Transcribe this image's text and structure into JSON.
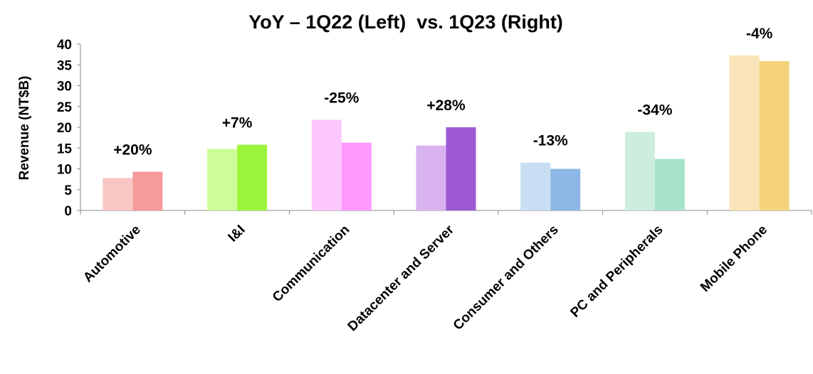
{
  "chart_data": {
    "type": "bar",
    "title": "YoY – 1Q22 (Left)  vs. 1Q23 (Right)",
    "y_label": "Revenue (NT$B)",
    "categories": [
      "Automotive",
      "I&I",
      "Communication",
      "Datacenter and Server",
      "Consumer and Others",
      "PC and Peripherals",
      "Mobile Phone"
    ],
    "series": [
      {
        "values": [
          7.8,
          14.8,
          21.8,
          15.6,
          11.5,
          18.9,
          37.3
        ],
        "colors": [
          "#f9c6c6",
          "#ccfd99",
          "#fdc7fd",
          "#d9b3f0",
          "#c9def2",
          "#cdeedd",
          "#f9e4b8"
        ]
      },
      {
        "values": [
          9.3,
          15.8,
          16.3,
          20.0,
          10.0,
          12.4,
          35.9
        ],
        "colors": [
          "#f79a9a",
          "#9cf53a",
          "#fd99fd",
          "#9d5ad2",
          "#8db7e4",
          "#a8e4cb",
          "#f5d27c"
        ]
      }
    ],
    "annotations": [
      "+20%",
      "+7%",
      "-25%",
      "+28%",
      "-13%",
      "-34%",
      "-4%"
    ],
    "ylim": [
      0,
      40
    ],
    "yticks": [
      0,
      5,
      10,
      15,
      20,
      25,
      30,
      35,
      40
    ],
    "grid": false
  }
}
